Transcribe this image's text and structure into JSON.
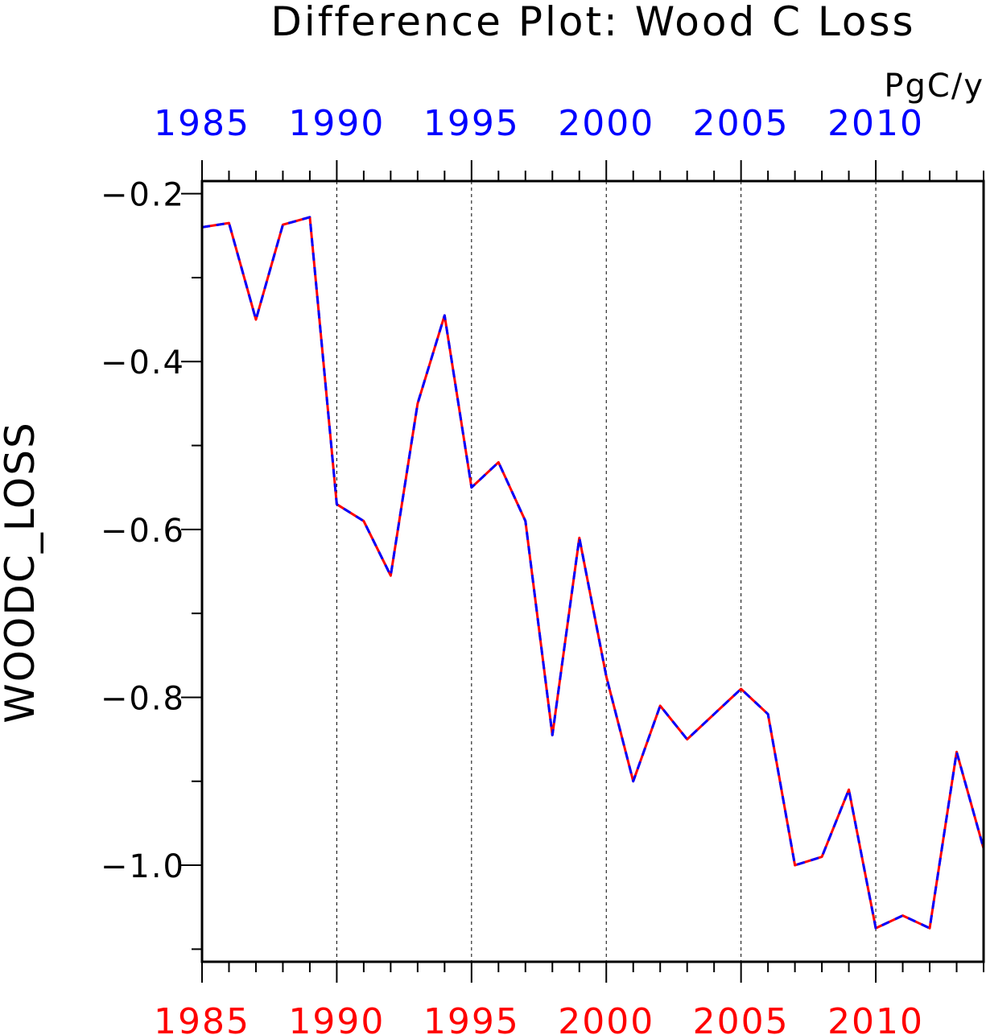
{
  "chart_data": {
    "type": "line",
    "title": "Difference Plot: Wood C Loss",
    "units": "PgC/y",
    "ylabel": "WOODC_LOSS",
    "xlabel": "",
    "xlim": [
      1985,
      2014
    ],
    "ylim": [
      -1.115,
      -0.185
    ],
    "x_ticks": [
      "1985",
      "1990",
      "1995",
      "2000",
      "2005",
      "2010"
    ],
    "y_ticks": [
      "−0.2",
      "−0.4",
      "−0.6",
      "−0.8",
      "−1.0"
    ],
    "grid": "vertical dashed at major x ticks",
    "colors": {
      "series_a": "#ff0000",
      "series_b": "#0000ff",
      "top_axis_labels": "#0000ff",
      "bottom_axis_labels": "#ff0000"
    },
    "x": [
      1985,
      1986,
      1987,
      1988,
      1989,
      1990,
      1991,
      1992,
      1993,
      1994,
      1995,
      1996,
      1997,
      1998,
      1999,
      2000,
      2001,
      2002,
      2003,
      2004,
      2005,
      2006,
      2007,
      2008,
      2009,
      2010,
      2011,
      2012,
      2013,
      2014
    ],
    "series": [
      {
        "color": "#ff0000",
        "style": "solid",
        "values": [
          -0.24,
          -0.235,
          -0.35,
          -0.237,
          -0.228,
          -0.57,
          -0.59,
          -0.655,
          -0.45,
          -0.345,
          -0.55,
          -0.52,
          -0.59,
          -0.845,
          -0.61,
          -0.775,
          -0.9,
          -0.81,
          -0.85,
          -0.82,
          -0.79,
          -0.82,
          -1.0,
          -0.99,
          -0.91,
          -1.075,
          -1.06,
          -1.075,
          -0.865,
          -0.98
        ]
      },
      {
        "color": "#0000ff",
        "style": "dashed",
        "values": [
          -0.24,
          -0.235,
          -0.35,
          -0.237,
          -0.228,
          -0.57,
          -0.59,
          -0.655,
          -0.45,
          -0.345,
          -0.55,
          -0.52,
          -0.59,
          -0.845,
          -0.61,
          -0.775,
          -0.9,
          -0.81,
          -0.85,
          -0.82,
          -0.79,
          -0.82,
          -1.0,
          -0.99,
          -0.91,
          -1.075,
          -1.06,
          -1.075,
          -0.865,
          -0.98
        ]
      }
    ]
  }
}
